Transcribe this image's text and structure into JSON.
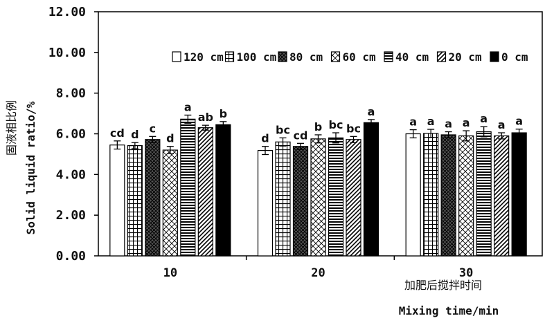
{
  "chart_data": {
    "type": "bar",
    "xlabel_cn": "加肥后搅拌时间",
    "xlabel": "Mixing time/min",
    "ylabel_cn": "固液相比例",
    "ylabel": "Solid liquid ratio/%",
    "ylim": [
      0,
      12
    ],
    "yticks": [
      "0.00",
      "2.00",
      "4.00",
      "6.00",
      "8.00",
      "10.00",
      "12.00"
    ],
    "categories": [
      "10",
      "20",
      "30"
    ],
    "legend_position": "top-right",
    "series": [
      {
        "name": "120 cm",
        "pattern": "white",
        "values": [
          5.45,
          5.18,
          6.0
        ],
        "errors": [
          0.2,
          0.2,
          0.2
        ],
        "labels": [
          "cd",
          "d",
          "a"
        ]
      },
      {
        "name": "100 cm",
        "pattern": "grid",
        "values": [
          5.42,
          5.6,
          6.02
        ],
        "errors": [
          0.15,
          0.2,
          0.2
        ],
        "labels": [
          "d",
          "bc",
          "a"
        ]
      },
      {
        "name": "80 cm",
        "pattern": "crosshatch-dark",
        "values": [
          5.72,
          5.38,
          5.95
        ],
        "errors": [
          0.15,
          0.15,
          0.15
        ],
        "labels": [
          "c",
          "cd",
          "a"
        ]
      },
      {
        "name": "60 cm",
        "pattern": "crosshatch-light",
        "values": [
          5.2,
          5.75,
          5.9
        ],
        "errors": [
          0.18,
          0.2,
          0.25
        ],
        "labels": [
          "d",
          "b",
          "a"
        ]
      },
      {
        "name": "40 cm",
        "pattern": "horizontal",
        "values": [
          6.72,
          5.8,
          6.1
        ],
        "errors": [
          0.2,
          0.25,
          0.25
        ],
        "labels": [
          "a",
          "bc",
          "a"
        ]
      },
      {
        "name": "20 cm",
        "pattern": "diagonal",
        "values": [
          6.3,
          5.72,
          5.9
        ],
        "errors": [
          0.12,
          0.15,
          0.15
        ],
        "labels": [
          "ab",
          "bc",
          "a"
        ]
      },
      {
        "name": "0 cm",
        "pattern": "black",
        "values": [
          6.45,
          6.55,
          6.05
        ],
        "errors": [
          0.15,
          0.15,
          0.18
        ],
        "labels": [
          "b",
          "a",
          "a"
        ]
      }
    ]
  }
}
